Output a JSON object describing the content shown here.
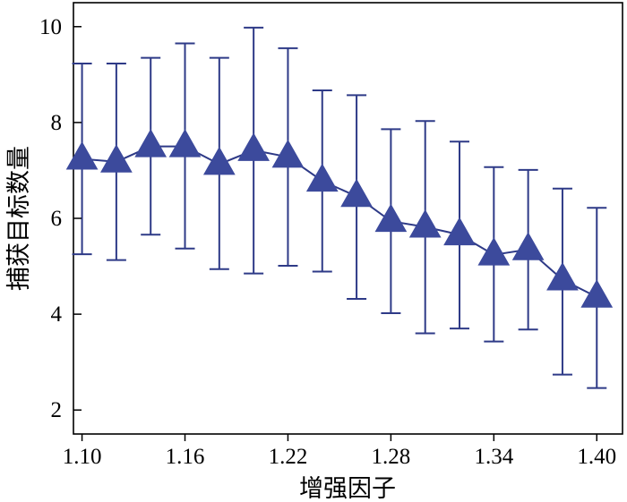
{
  "chart_data": {
    "type": "line",
    "xlabel": "增强因子",
    "ylabel": "捕获目标数量",
    "x_ticks": [
      "1.10",
      "1.16",
      "1.22",
      "1.28",
      "1.34",
      "1.40"
    ],
    "y_ticks": [
      "2",
      "4",
      "6",
      "8",
      "10"
    ],
    "xlim": [
      1.095,
      1.415
    ],
    "ylim": [
      1.5,
      10.5
    ],
    "grid": false,
    "marker": "triangle",
    "colors": {
      "line": "#2e3a87",
      "marker": "#3c4a9c",
      "error_bar": "#2e3a87",
      "axis": "#000000"
    },
    "series": [
      {
        "x": [
          1.1,
          1.12,
          1.14,
          1.16,
          1.18,
          1.2,
          1.22,
          1.24,
          1.26,
          1.28,
          1.3,
          1.32,
          1.34,
          1.36,
          1.38,
          1.4
        ],
        "y": [
          7.24,
          7.18,
          7.5,
          7.5,
          7.13,
          7.42,
          7.28,
          6.78,
          6.46,
          5.94,
          5.82,
          5.66,
          5.24,
          5.35,
          4.72,
          4.36
        ],
        "error_high": [
          9.23,
          9.23,
          9.35,
          9.65,
          9.35,
          9.98,
          9.55,
          8.67,
          8.57,
          7.86,
          8.03,
          7.6,
          7.07,
          7.01,
          6.62,
          6.22
        ],
        "error_low": [
          5.25,
          5.13,
          5.66,
          5.37,
          4.94,
          4.85,
          5.01,
          4.89,
          4.32,
          4.02,
          3.6,
          3.7,
          3.43,
          3.68,
          2.74,
          2.46
        ]
      }
    ]
  }
}
